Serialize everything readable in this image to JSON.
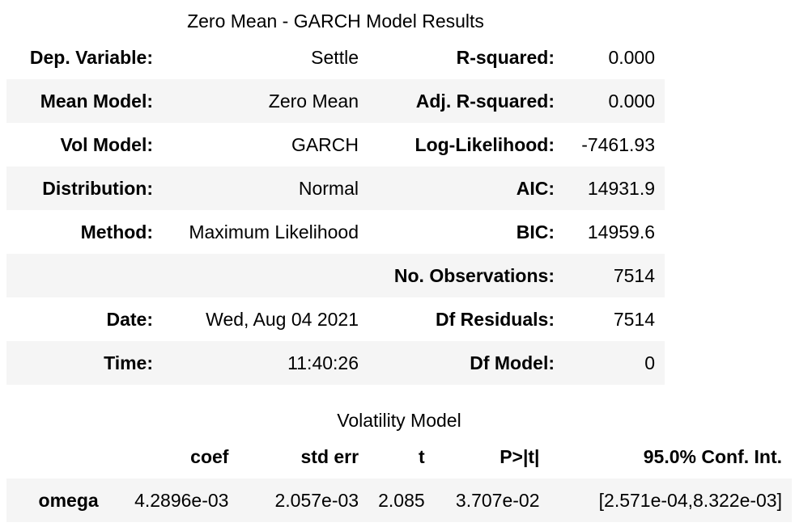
{
  "summary": {
    "caption": "Zero Mean - GARCH Model Results",
    "rows": [
      {
        "label1": "Dep. Variable:",
        "value1": "Settle",
        "label2": "R-squared:",
        "value2": "0.000"
      },
      {
        "label1": "Mean Model:",
        "value1": "Zero Mean",
        "label2": "Adj. R-squared:",
        "value2": "0.000"
      },
      {
        "label1": "Vol Model:",
        "value1": "GARCH",
        "label2": "Log-Likelihood:",
        "value2": "-7461.93"
      },
      {
        "label1": "Distribution:",
        "value1": "Normal",
        "label2": "AIC:",
        "value2": "14931.9"
      },
      {
        "label1": "Method:",
        "value1": "Maximum Likelihood",
        "label2": "BIC:",
        "value2": "14959.6"
      },
      {
        "label1": "",
        "value1": "",
        "label2": "No. Observations:",
        "value2": "7514"
      },
      {
        "label1": "Date:",
        "value1": "Wed, Aug 04 2021",
        "label2": "Df Residuals:",
        "value2": "7514"
      },
      {
        "label1": "Time:",
        "value1": "11:40:26",
        "label2": "Df Model:",
        "value2": "0"
      }
    ]
  },
  "volatility": {
    "caption": "Volatility Model",
    "headers": [
      "",
      "coef",
      "std err",
      "t",
      "P>|t|",
      "95.0% Conf. Int."
    ],
    "rows": [
      {
        "param": "omega",
        "coef": "4.2896e-03",
        "std_err": "2.057e-03",
        "t": "2.085",
        "p": "3.707e-02",
        "ci": "[2.571e-04,8.322e-03]"
      }
    ]
  },
  "colors": {
    "stripe": "#f5f5f5",
    "text": "#000000",
    "background": "#ffffff"
  }
}
